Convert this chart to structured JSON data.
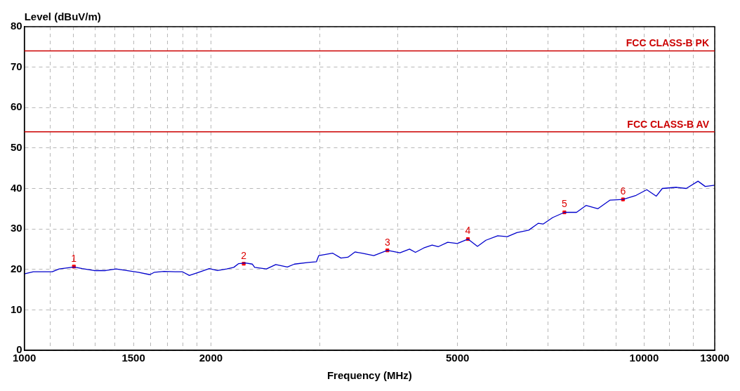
{
  "chart_data": {
    "type": "line",
    "xlabel": "Frequency (MHz)",
    "ylabel": "Level (dBuV/m)",
    "log": "x",
    "grid": true,
    "legend": false,
    "line_style": "solid",
    "xlim": [
      1000,
      13000
    ],
    "ylim": [
      0,
      80
    ],
    "xticks": [
      1000,
      {
        "value": 1100,
        "label": null
      },
      {
        "value": 1200,
        "label": null
      },
      {
        "value": 1300,
        "label": null
      },
      {
        "value": 1400,
        "label": null
      },
      1500,
      {
        "value": 1600,
        "label": null
      },
      {
        "value": 1700,
        "label": null
      },
      {
        "value": 1800,
        "label": null
      },
      {
        "value": 1900,
        "label": null
      },
      2000,
      {
        "value": 3000,
        "label": null
      },
      {
        "value": 4000,
        "label": null
      },
      5000,
      {
        "value": 6000,
        "label": null
      },
      {
        "value": 7000,
        "label": null
      },
      {
        "value": 8000,
        "label": null
      },
      {
        "value": 9000,
        "label": null
      },
      10000,
      {
        "value": 11000,
        "label": null
      },
      {
        "value": 12000,
        "label": null
      },
      13000
    ],
    "yticks": [
      0,
      10,
      20,
      30,
      40,
      50,
      60,
      70,
      80
    ],
    "series": [
      {
        "color": "#0000cc",
        "x": [
          1000,
          1034,
          1109,
          1138,
          1203,
          1240,
          1296,
          1352,
          1406,
          1462,
          1527,
          1594,
          1622,
          1680,
          1753,
          1800,
          1846,
          1912,
          1988,
          2049,
          2121,
          2177,
          2215,
          2274,
          2333,
          2353,
          2458,
          2545,
          2657,
          2727,
          2871,
          2960,
          2985,
          3145,
          3242,
          3327,
          3415,
          3504,
          3663,
          3853,
          4037,
          4183,
          4276,
          4411,
          4550,
          4652,
          4821,
          4995,
          5197,
          5384,
          5555,
          5805,
          6016,
          6232,
          6514,
          6750,
          6871,
          7117,
          7437,
          7780,
          8059,
          8424,
          8804,
          9245,
          9707,
          10099,
          10464,
          10698,
          11283,
          11693,
          12218,
          12550,
          13000
        ],
        "values": [
          18.9,
          19.4,
          19.4,
          20.1,
          20.6,
          20.2,
          19.7,
          19.7,
          20.1,
          19.7,
          19.3,
          18.7,
          19.3,
          19.5,
          19.4,
          19.4,
          18.5,
          19.3,
          20.2,
          19.7,
          20.1,
          20.5,
          21.4,
          21.6,
          21.3,
          20.5,
          20.1,
          21.2,
          20.6,
          21.3,
          21.7,
          21.9,
          23.4,
          24.0,
          22.8,
          23.0,
          24.3,
          24.0,
          23.4,
          24.7,
          24.1,
          25.0,
          24.2,
          25.3,
          26.0,
          25.6,
          26.7,
          26.4,
          27.5,
          25.7,
          27.2,
          28.3,
          28.1,
          29.1,
          29.7,
          31.4,
          31.2,
          32.8,
          34.1,
          34.1,
          35.8,
          35.0,
          37.1,
          37.3,
          38.3,
          39.7,
          38.1,
          40.0,
          40.3,
          40.0,
          41.8,
          40.5,
          40.8
        ]
      },
      {
        "type": "scatter",
        "color": "#ff0000",
        "marker": "square",
        "x": [
          1202,
          2259,
          3853,
          5197,
          7437,
          9245
        ],
        "values": [
          20.7,
          21.4,
          24.7,
          27.5,
          34.1,
          37.3
        ]
      }
    ],
    "ref_lines": [
      {
        "axis": "y",
        "value": 74,
        "label": "FCC CLASS-B PK",
        "color": "#cc0000",
        "line_style": "solid"
      },
      {
        "axis": "y",
        "value": 54,
        "label": "FCC CLASS-B AV",
        "color": "#cc0000",
        "line_style": "solid"
      }
    ],
    "annotations": [
      {
        "text": "1",
        "x": 1202,
        "y": 20.7
      },
      {
        "text": "2",
        "x": 2259,
        "y": 21.4
      },
      {
        "text": "3",
        "x": 3853,
        "y": 24.7
      },
      {
        "text": "4",
        "x": 5197,
        "y": 27.5
      },
      {
        "text": "5",
        "x": 7437,
        "y": 34.1
      },
      {
        "text": "6",
        "x": 9245,
        "y": 37.3
      }
    ]
  }
}
